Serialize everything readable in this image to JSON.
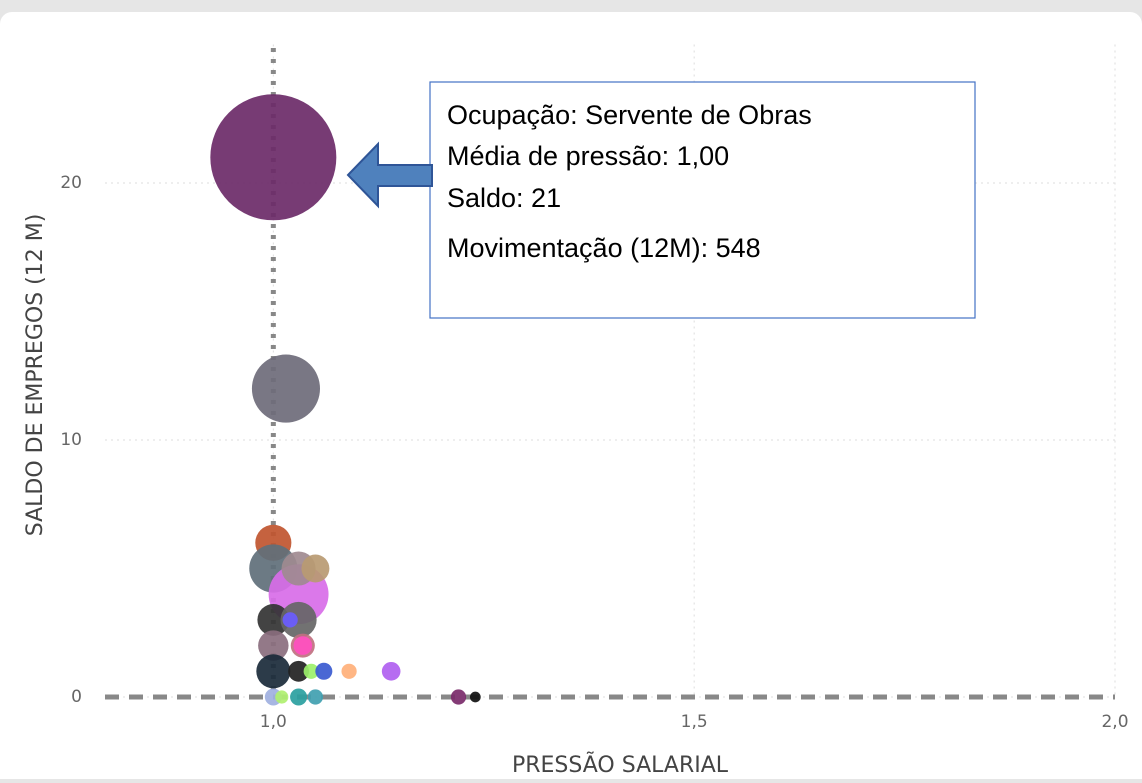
{
  "chart_data": {
    "type": "bubble",
    "xlabel": "PRESSÃO SALARIAL",
    "ylabel": "SALDO DE EMPREGOS (12 M)",
    "xlim": [
      0.8,
      2.0
    ],
    "ylim": [
      0,
      25
    ],
    "xticks": [
      {
        "value": 1.0,
        "label": "1,0"
      },
      {
        "value": 1.5,
        "label": "1,5"
      },
      {
        "value": 2.0,
        "label": "2,0"
      }
    ],
    "yticks": [
      0,
      10,
      20
    ],
    "grid": true,
    "x_reference": 1.0,
    "y_reference": 0,
    "x": [
      1.0,
      1.015,
      1.0,
      1.0,
      1.03,
      1.03,
      1.05,
      1.0,
      1.03,
      1.02,
      1.0,
      1.035,
      1.035,
      1.0,
      1.03,
      1.045,
      1.06,
      1.09,
      1.14,
      1.0,
      1.01,
      1.03,
      1.05,
      1.22,
      1.24
    ],
    "values": [
      21,
      12,
      6,
      5,
      4,
      5,
      5,
      3,
      3,
      3,
      2,
      2,
      2,
      1,
      1,
      1,
      1,
      1,
      1,
      0,
      0,
      0,
      0,
      0,
      0
    ],
    "sizes": [
      548,
      160,
      45,
      80,
      124,
      40,
      27,
      35,
      45,
      8,
      32,
      20,
      12,
      40,
      15,
      8,
      10,
      8,
      12,
      10,
      6,
      10,
      8,
      8,
      4
    ],
    "colors": [
      "#6b2a68",
      "#6e6b7a",
      "#c0552f",
      "#5f6f7a",
      "#d86ce8",
      "#a08a90",
      "#b89a72",
      "#333333",
      "#666666",
      "#6a5cff",
      "#8a6e7e",
      "#c07080",
      "#ff4fc0",
      "#1a2a3a",
      "#222222",
      "#9cf06a",
      "#3a5ad0",
      "#ffb07a",
      "#b060f0",
      "#a0b0e0",
      "#b0f070",
      "#2aa0a0",
      "#40a0b0",
      "#7a2a6a",
      "#111111"
    ],
    "annotation": [
      "Ocupação: Servente de Obras",
      "Média de pressão: 1,00",
      "Saldo: 21",
      "Movimentação (12M): 548"
    ]
  }
}
